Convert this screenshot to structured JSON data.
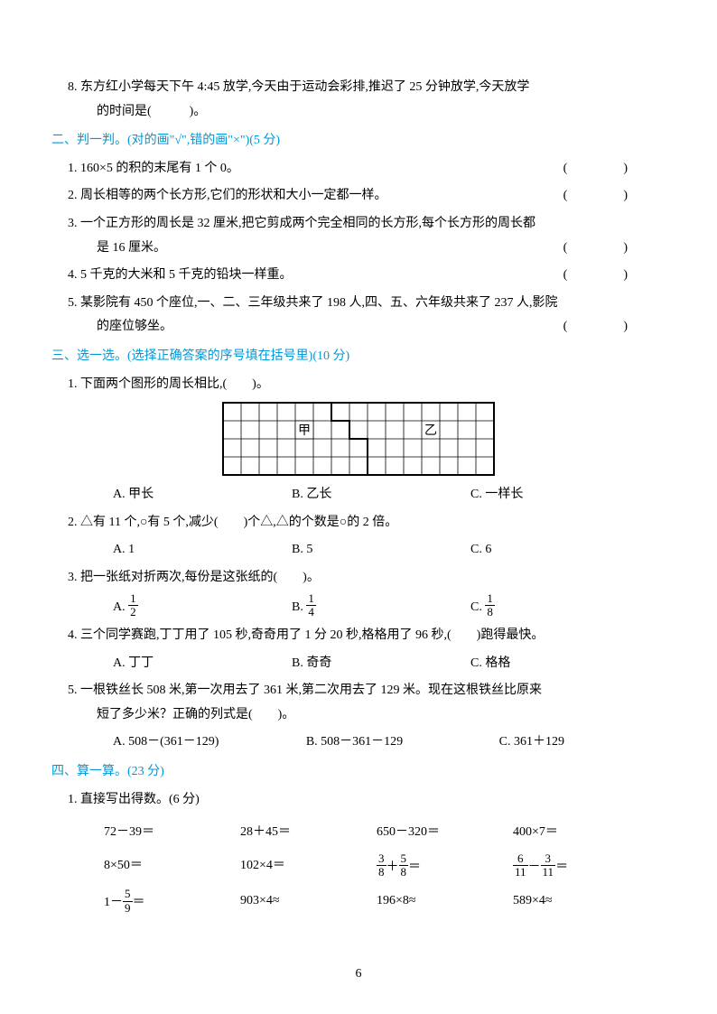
{
  "q8": {
    "text": "8. 东方红小学每天下午 4:45 放学,今天由于运动会彩排,推迟了 25 分钟放学,今天放学",
    "text2": "的时间是(　　　)。"
  },
  "sec2": {
    "heading": "二、判一判。(对的画\"√\",错的画\"×\")(5 分)",
    "items": [
      "1. 160×5 的积的末尾有 1 个 0。",
      "2. 周长相等的两个长方形,它们的形状和大小一定都一样。",
      "3. 一个正方形的周长是 32 厘米,把它剪成两个完全相同的长方形,每个长方形的周长都",
      "是 16 厘米。",
      "4. 5 千克的大米和 5 千克的铅块一样重。",
      "5. 某影院有 450 个座位,一、二、三年级共来了 198 人,四、五、六年级共来了 237 人,影院",
      "的座位够坐。"
    ]
  },
  "sec3": {
    "heading": "三、选一选。(选择正确答案的序号填在括号里)(10 分)",
    "q1": {
      "text": "1. 下面两个图形的周长相比,(　　)。",
      "optA": "A. 甲长",
      "optB": "B. 乙长",
      "optC": "C. 一样长",
      "labelJia": "甲",
      "labelYi": "乙",
      "grid": {
        "cols": 15,
        "rows": 4,
        "cut_col": 7,
        "cut_row": 2
      }
    },
    "q2": {
      "text": "2. △有 11 个,○有 5 个,减少(　　)个△,△的个数是○的 2 倍。",
      "optA": "A. 1",
      "optB": "B. 5",
      "optC": "C. 6"
    },
    "q3": {
      "text": "3. 把一张纸对折两次,每份是这张纸的(　　)。",
      "optA_prefix": "A. ",
      "optA_n": "1",
      "optA_d": "2",
      "optB_prefix": "B. ",
      "optB_n": "1",
      "optB_d": "4",
      "optC_prefix": "C. ",
      "optC_n": "1",
      "optC_d": "8"
    },
    "q4": {
      "text": "4. 三个同学赛跑,丁丁用了 105 秒,奇奇用了 1 分 20 秒,格格用了 96 秒,(　　)跑得最快。",
      "optA": "A. 丁丁",
      "optB": "B. 奇奇",
      "optC": "C. 格格"
    },
    "q5": {
      "text": "5. 一根铁丝长 508 米,第一次用去了 361 米,第二次用去了 129 米。现在这根铁丝比原来",
      "text2": "短了多少米？正确的列式是(　　)。",
      "optA": "A. 508－(361－129)",
      "optB": "B. 508－361－129",
      "optC": "C. 361＋129"
    }
  },
  "sec4": {
    "heading": "四、算一算。(23 分)",
    "sub1": "1. 直接写出得数。(6 分)",
    "row1": [
      "72－39＝",
      "28＋45＝",
      "650－320＝",
      "400×7＝"
    ],
    "row2": {
      "c1": "8×50＝",
      "c2": "102×4＝",
      "c3_n1": "3",
      "c3_d1": "8",
      "c3_plus": "＋",
      "c3_n2": "5",
      "c3_d2": "8",
      "c3_eq": "＝",
      "c4_n1": "6",
      "c4_d1": "11",
      "c4_minus": "－",
      "c4_n2": "3",
      "c4_d2": "11",
      "c4_eq": "＝"
    },
    "row3": {
      "c1_pre": "1－",
      "c1_n": "5",
      "c1_d": "9",
      "c1_eq": "＝",
      "c2": "903×4≈",
      "c3": "196×8≈",
      "c4": "589×4≈"
    }
  },
  "pagenum": "6",
  "paren": "(　)"
}
